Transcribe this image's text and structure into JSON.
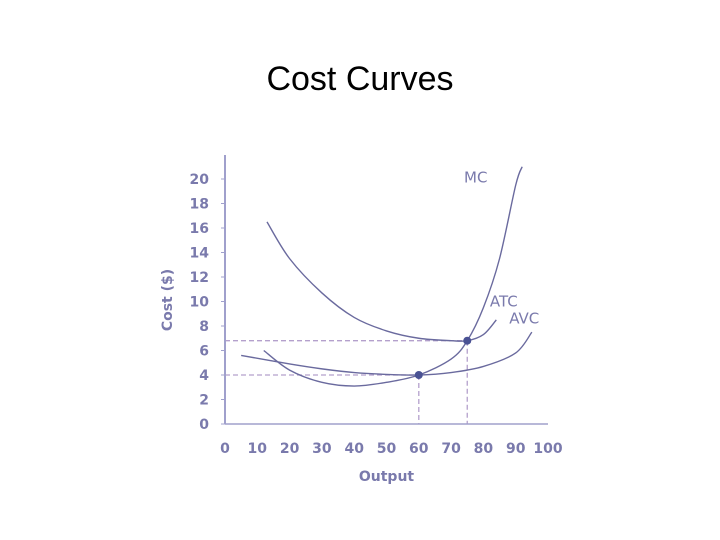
{
  "slide": {
    "title": "Cost Curves"
  },
  "colors": {
    "curve": "#6a6a9e",
    "axis": "#a0a0cc",
    "label": "#7a7aac",
    "guide": "#b4a0cc",
    "point": "#4a5294"
  },
  "chart_data": {
    "type": "line",
    "title": "Cost Curves",
    "xlabel": "Output",
    "ylabel": "Cost ($)",
    "xlim": [
      0,
      100
    ],
    "ylim": [
      0,
      22
    ],
    "xticks": [
      "0",
      "10",
      "20",
      "30",
      "40",
      "50",
      "60",
      "70",
      "80",
      "90",
      "100"
    ],
    "yticks": [
      "0",
      "2",
      "4",
      "6",
      "8",
      "10",
      "12",
      "14",
      "16",
      "18",
      "20"
    ],
    "grid": false,
    "series": [
      {
        "name": "MC",
        "x": [
          12,
          20,
          30,
          40,
          50,
          60,
          70,
          75,
          80,
          85,
          90,
          92
        ],
        "y": [
          6,
          4.4,
          3.4,
          3.1,
          3.4,
          4.0,
          5.3,
          6.8,
          9.5,
          13.5,
          19.5,
          21
        ]
      },
      {
        "name": "ATC",
        "x": [
          13,
          20,
          30,
          40,
          50,
          60,
          70,
          75,
          80,
          84
        ],
        "y": [
          16.5,
          13.5,
          10.7,
          8.7,
          7.6,
          7.0,
          6.8,
          6.8,
          7.3,
          8.5
        ]
      },
      {
        "name": "AVC",
        "x": [
          5,
          20,
          30,
          40,
          50,
          60,
          70,
          80,
          90,
          95
        ],
        "y": [
          5.6,
          4.9,
          4.5,
          4.2,
          4.05,
          4.0,
          4.2,
          4.7,
          5.8,
          7.5
        ]
      }
    ],
    "points": [
      {
        "x": 60,
        "y": 4
      },
      {
        "x": 75,
        "y": 6.8
      }
    ]
  }
}
